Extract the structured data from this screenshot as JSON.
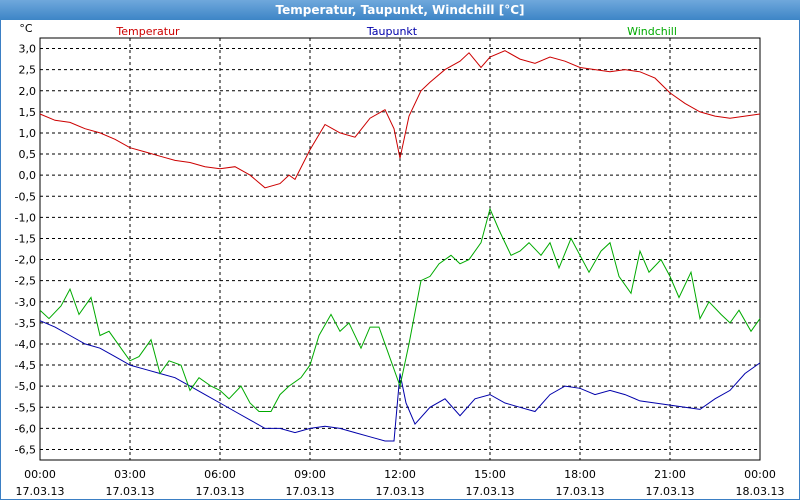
{
  "window": {
    "title": "Temperatur, Taupunkt, Windchill [°C]"
  },
  "chart_data": {
    "type": "line",
    "ylabel": "°C",
    "ylim": [
      -6.75,
      3.25
    ],
    "yticks": [
      3.0,
      2.5,
      2.0,
      1.5,
      1.0,
      0.5,
      0.0,
      -0.5,
      -1.0,
      -1.5,
      -2.0,
      -2.5,
      -3.0,
      -3.5,
      -4.0,
      -4.5,
      -5.0,
      -5.5,
      -6.0,
      -6.5
    ],
    "ytick_labels": [
      "3,0",
      "2,5",
      "2,0",
      "1,5",
      "1,0",
      "0,5",
      "0,0",
      "-0,5",
      "-1,0",
      "-1,5",
      "-2,0",
      "-2,5",
      "-3,0",
      "-3,5",
      "-4,0",
      "-4,5",
      "-5,0",
      "-5,5",
      "-6,0",
      "-6,5"
    ],
    "xlim": [
      0,
      24
    ],
    "xticks": [
      0,
      3,
      6,
      9,
      12,
      15,
      18,
      21,
      24
    ],
    "xtick_times": [
      "00:00",
      "03:00",
      "06:00",
      "09:00",
      "12:00",
      "15:00",
      "18:00",
      "21:00",
      "00:00"
    ],
    "xtick_dates": [
      "17.03.13",
      "17.03.13",
      "17.03.13",
      "17.03.13",
      "17.03.13",
      "17.03.13",
      "17.03.13",
      "17.03.13",
      "18.03.13"
    ],
    "grid": true,
    "series": [
      {
        "name": "Temperatur",
        "color": "#cc0000",
        "x": [
          0,
          0.5,
          1,
          1.5,
          2,
          2.5,
          3,
          3.5,
          4,
          4.5,
          5,
          5.5,
          6,
          6.5,
          7,
          7.5,
          8,
          8.3,
          8.5,
          9,
          9.5,
          10,
          10.5,
          11,
          11.5,
          11.8,
          12,
          12.3,
          12.7,
          13,
          13.5,
          14,
          14.3,
          14.7,
          15,
          15.5,
          16,
          16.5,
          17,
          17.5,
          18,
          18.5,
          19,
          19.5,
          20,
          20.5,
          21,
          21.5,
          22,
          22.5,
          23,
          23.5,
          24
        ],
        "y": [
          1.45,
          1.3,
          1.25,
          1.1,
          1.0,
          0.85,
          0.65,
          0.55,
          0.45,
          0.35,
          0.3,
          0.2,
          0.15,
          0.2,
          0.0,
          -0.3,
          -0.2,
          0.0,
          -0.1,
          0.6,
          1.2,
          1.0,
          0.9,
          1.35,
          1.55,
          1.1,
          0.4,
          1.4,
          2.0,
          2.2,
          2.5,
          2.7,
          2.9,
          2.55,
          2.8,
          2.95,
          2.75,
          2.65,
          2.8,
          2.7,
          2.55,
          2.5,
          2.45,
          2.5,
          2.45,
          2.3,
          1.95,
          1.7,
          1.5,
          1.4,
          1.35,
          1.4,
          1.45
        ]
      },
      {
        "name": "Taupunkt",
        "color": "#0000aa",
        "x": [
          0,
          0.5,
          1,
          1.5,
          2,
          2.5,
          3,
          3.5,
          4,
          4.5,
          5,
          5.5,
          6,
          6.5,
          7,
          7.5,
          8,
          8.5,
          9,
          9.5,
          10,
          10.5,
          11,
          11.5,
          11.8,
          12,
          12.2,
          12.5,
          13,
          13.5,
          14,
          14.5,
          15,
          15.5,
          16,
          16.5,
          17,
          17.5,
          18,
          18.5,
          19,
          19.5,
          20,
          20.5,
          21,
          21.5,
          22,
          22.5,
          23,
          23.5,
          24
        ],
        "y": [
          -3.45,
          -3.6,
          -3.8,
          -4.0,
          -4.1,
          -4.3,
          -4.5,
          -4.6,
          -4.7,
          -4.8,
          -5.0,
          -5.2,
          -5.4,
          -5.6,
          -5.8,
          -6.0,
          -6.0,
          -6.1,
          -6.0,
          -5.95,
          -6.0,
          -6.1,
          -6.2,
          -6.3,
          -6.3,
          -4.7,
          -5.4,
          -5.9,
          -5.5,
          -5.3,
          -5.7,
          -5.3,
          -5.2,
          -5.4,
          -5.5,
          -5.6,
          -5.2,
          -5.0,
          -5.05,
          -5.2,
          -5.1,
          -5.2,
          -5.35,
          -5.4,
          -5.45,
          -5.5,
          -5.55,
          -5.3,
          -5.1,
          -4.7,
          -4.45
        ]
      },
      {
        "name": "Windchill",
        "color": "#00aa00",
        "x": [
          0,
          0.3,
          0.7,
          1,
          1.3,
          1.7,
          2,
          2.3,
          2.7,
          3,
          3.3,
          3.7,
          4,
          4.3,
          4.7,
          5,
          5.3,
          5.7,
          6,
          6.3,
          6.7,
          7,
          7.3,
          7.7,
          8,
          8.3,
          8.7,
          9,
          9.3,
          9.7,
          10,
          10.3,
          10.7,
          11,
          11.3,
          11.7,
          12,
          12.3,
          12.7,
          13,
          13.3,
          13.7,
          14,
          14.3,
          14.7,
          15,
          15.3,
          15.7,
          16,
          16.3,
          16.7,
          17,
          17.3,
          17.7,
          18,
          18.3,
          18.7,
          19,
          19.3,
          19.7,
          20,
          20.3,
          20.7,
          21,
          21.3,
          21.7,
          22,
          22.3,
          22.7,
          23,
          23.3,
          23.7,
          24
        ],
        "y": [
          -3.2,
          -3.4,
          -3.1,
          -2.7,
          -3.3,
          -2.9,
          -3.8,
          -3.7,
          -4.1,
          -4.4,
          -4.3,
          -3.9,
          -4.7,
          -4.4,
          -4.5,
          -5.1,
          -4.8,
          -5.0,
          -5.1,
          -5.3,
          -5.0,
          -5.4,
          -5.6,
          -5.6,
          -5.2,
          -5.0,
          -4.8,
          -4.5,
          -3.8,
          -3.3,
          -3.7,
          -3.5,
          -4.1,
          -3.6,
          -3.6,
          -4.4,
          -5.0,
          -4.0,
          -2.5,
          -2.4,
          -2.1,
          -1.9,
          -2.1,
          -2.0,
          -1.6,
          -0.8,
          -1.3,
          -1.9,
          -1.8,
          -1.6,
          -1.9,
          -1.6,
          -2.2,
          -1.5,
          -1.9,
          -2.3,
          -1.8,
          -1.6,
          -2.4,
          -2.8,
          -1.8,
          -2.3,
          -2.0,
          -2.4,
          -2.9,
          -2.3,
          -3.4,
          -3.0,
          -3.3,
          -3.5,
          -3.2,
          -3.7,
          -3.4
        ]
      }
    ]
  }
}
